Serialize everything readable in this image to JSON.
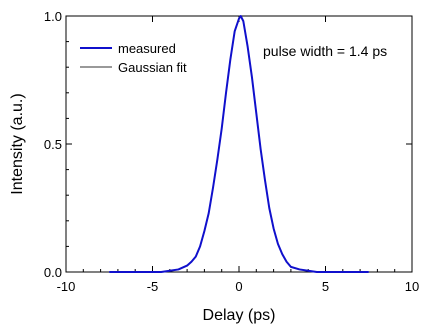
{
  "chart_data": {
    "type": "line",
    "title": "",
    "xlabel": "Delay (ps)",
    "ylabel": "Intensity (a.u.)",
    "xlim": [
      -10,
      10
    ],
    "ylim": [
      0,
      1.0
    ],
    "x_ticks": [
      -10,
      -5,
      0,
      5,
      10
    ],
    "x_tick_labels": [
      "-10",
      "-5",
      "0",
      "5",
      "10"
    ],
    "y_ticks": [
      0.0,
      0.5,
      1.0
    ],
    "y_tick_labels": [
      "0.0",
      "0.5",
      "1.0"
    ],
    "grid": false,
    "legend_position": "top-left",
    "annotation": "pulse width = 1.4 ps",
    "series": [
      {
        "name": "measured",
        "color": "#1010cc",
        "x": [
          -7.5,
          -6.5,
          -5.5,
          -4.5,
          -4.0,
          -3.5,
          -3.0,
          -2.75,
          -2.5,
          -2.25,
          -2.0,
          -1.75,
          -1.5,
          -1.25,
          -1.0,
          -0.75,
          -0.5,
          -0.25,
          0.0,
          0.1,
          0.25,
          0.5,
          0.75,
          1.0,
          1.25,
          1.5,
          1.75,
          2.0,
          2.25,
          2.5,
          2.75,
          3.0,
          3.5,
          4.0,
          4.5,
          5.5,
          6.5,
          7.5
        ],
        "y": [
          0.0,
          0.0,
          0.0,
          0.0,
          0.005,
          0.01,
          0.025,
          0.04,
          0.06,
          0.1,
          0.16,
          0.23,
          0.33,
          0.44,
          0.56,
          0.7,
          0.83,
          0.94,
          0.99,
          1.0,
          0.98,
          0.88,
          0.76,
          0.62,
          0.48,
          0.36,
          0.25,
          0.17,
          0.11,
          0.07,
          0.04,
          0.02,
          0.01,
          0.005,
          0.0,
          0.0,
          0.0,
          0.0
        ]
      },
      {
        "name": "Gaussian fit",
        "color": "#999999",
        "x": [
          -7.5,
          -6.5,
          -5.5,
          -4.5,
          -4.0,
          -3.5,
          -3.0,
          -2.75,
          -2.5,
          -2.25,
          -2.0,
          -1.75,
          -1.5,
          -1.25,
          -1.0,
          -0.75,
          -0.5,
          -0.25,
          0.0,
          0.1,
          0.25,
          0.5,
          0.75,
          1.0,
          1.25,
          1.5,
          1.75,
          2.0,
          2.25,
          2.5,
          2.75,
          3.0,
          3.5,
          4.0,
          4.5,
          5.5,
          6.5,
          7.5
        ],
        "y": [
          0.0,
          0.0,
          0.0,
          0.0,
          0.004,
          0.01,
          0.024,
          0.04,
          0.06,
          0.1,
          0.16,
          0.23,
          0.33,
          0.44,
          0.56,
          0.7,
          0.83,
          0.94,
          0.99,
          1.0,
          0.98,
          0.88,
          0.76,
          0.62,
          0.48,
          0.36,
          0.25,
          0.17,
          0.11,
          0.07,
          0.04,
          0.02,
          0.01,
          0.004,
          0.0,
          0.0,
          0.0,
          0.0
        ]
      }
    ]
  }
}
